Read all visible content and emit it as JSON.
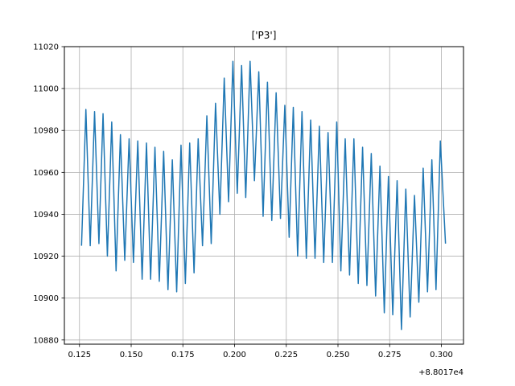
{
  "chart_data": {
    "type": "line",
    "title": "['P3']",
    "xlabel": "",
    "ylabel": "",
    "x_offset_label": "+8.8017e4",
    "xlim": [
      0.1177,
      0.3107
    ],
    "ylim": [
      10878,
      11020
    ],
    "grid": true,
    "line_color": "#1f77b4",
    "x_ticks": [
      0.125,
      0.15,
      0.175,
      0.2,
      0.225,
      0.25,
      0.275,
      0.3
    ],
    "x_tick_labels": [
      "0.125",
      "0.150",
      "0.175",
      "0.200",
      "0.225",
      "0.250",
      "0.275",
      "0.300"
    ],
    "y_ticks": [
      10880,
      10900,
      10920,
      10940,
      10960,
      10980,
      11000,
      11020
    ],
    "y_tick_labels": [
      "10880",
      "10900",
      "10920",
      "10940",
      "10960",
      "10980",
      "11000",
      "11020"
    ],
    "series": [
      {
        "name": "",
        "x": [
          0.126,
          0.1281,
          0.1302,
          0.1323,
          0.1344,
          0.1364,
          0.1385,
          0.1406,
          0.1427,
          0.1448,
          0.1469,
          0.149,
          0.1511,
          0.1532,
          0.1553,
          0.1574,
          0.1594,
          0.1615,
          0.1636,
          0.1657,
          0.1678,
          0.1699,
          0.172,
          0.1741,
          0.1762,
          0.1783,
          0.1804,
          0.1824,
          0.1845,
          0.1866,
          0.1887,
          0.1908,
          0.1929,
          0.195,
          0.1971,
          0.1992,
          0.2013,
          0.2034,
          0.2054,
          0.2075,
          0.2096,
          0.2117,
          0.2138,
          0.2159,
          0.218,
          0.2201,
          0.2222,
          0.2243,
          0.2264,
          0.2284,
          0.2305,
          0.2326,
          0.2347,
          0.2368,
          0.2389,
          0.241,
          0.2431,
          0.2452,
          0.2473,
          0.2494,
          0.2514,
          0.2535,
          0.2556,
          0.2577,
          0.2598,
          0.2619,
          0.264,
          0.2661,
          0.2682,
          0.2703,
          0.2724,
          0.2744,
          0.2765,
          0.2786,
          0.2807,
          0.2828,
          0.2849,
          0.287,
          0.2891,
          0.2912,
          0.2933,
          0.2954,
          0.2974,
          0.2995,
          0.302
        ],
        "y": [
          10925,
          10990,
          10925,
          10989,
          10926,
          10988,
          10920,
          10984,
          10913,
          10978,
          10918,
          10976,
          10917,
          10975,
          10909,
          10974,
          10909,
          10972,
          10908,
          10970,
          10904,
          10966,
          10903,
          10973,
          10907,
          10974,
          10912,
          10976,
          10925,
          10987,
          10926,
          10993,
          10940,
          11005,
          10946,
          11013,
          10950,
          11011,
          10948,
          11013,
          10956,
          11008,
          10939,
          11003,
          10937,
          10998,
          10938,
          10992,
          10929,
          10991,
          10920,
          10989,
          10919,
          10985,
          10919,
          10982,
          10917,
          10979,
          10917,
          10984,
          10913,
          10976,
          10911,
          10976,
          10907,
          10972,
          10906,
          10969,
          10901,
          10963,
          10893,
          10958,
          10892,
          10956,
          10885,
          10952,
          10891,
          10949,
          10898,
          10962,
          10903,
          10966,
          10904,
          10975,
          10926
        ]
      }
    ]
  }
}
